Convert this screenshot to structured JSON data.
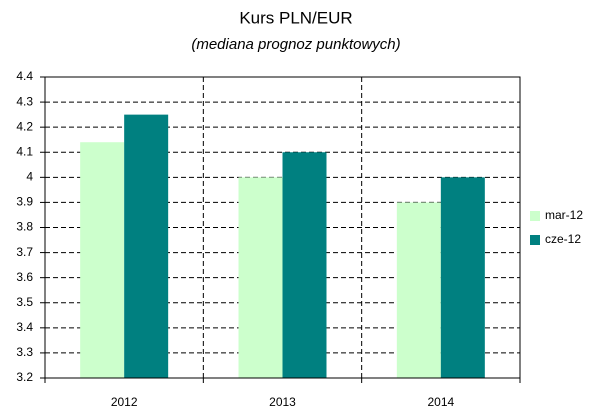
{
  "chart_data": {
    "type": "bar",
    "title": "Kurs PLN/EUR",
    "subtitle": "(mediana prognoz punktowych)",
    "categories": [
      "2012",
      "2013",
      "2014"
    ],
    "series": [
      {
        "name": "mar-12",
        "color": "#ccffcc",
        "values": [
          4.14,
          4.0,
          3.9
        ]
      },
      {
        "name": "cze-12",
        "color": "#008080",
        "values": [
          4.25,
          4.1,
          4.0
        ]
      }
    ],
    "ylim": [
      3.2,
      4.4
    ],
    "yticks": [
      3.2,
      3.3,
      3.4,
      3.5,
      3.6,
      3.7,
      3.8,
      3.9,
      4,
      4.1,
      4.2,
      4.3,
      4.4
    ],
    "grid": true,
    "legend": "right"
  }
}
